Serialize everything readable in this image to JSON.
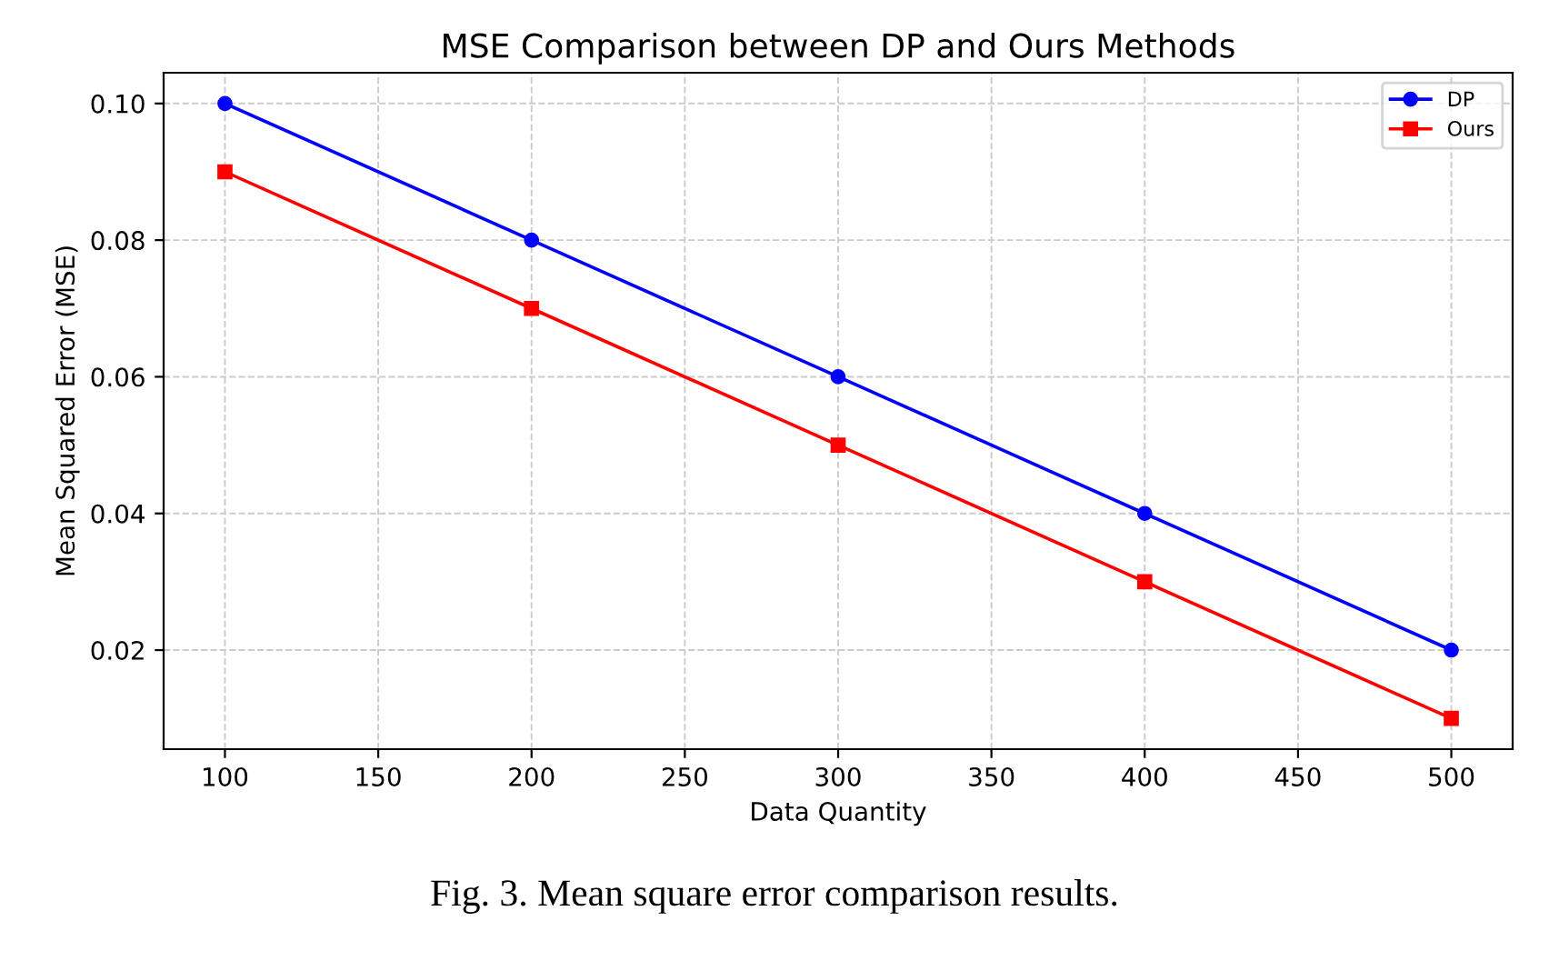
{
  "chart_data": {
    "type": "line",
    "title": "MSE Comparison between DP and Ours Methods",
    "xlabel": "Data Quantity",
    "ylabel": "Mean Squared Error (MSE)",
    "x": [
      100,
      200,
      300,
      400,
      500
    ],
    "series": [
      {
        "name": "DP",
        "color": "#0000ff",
        "values": [
          0.1,
          0.08,
          0.06,
          0.04,
          0.02
        ],
        "marker": "circle"
      },
      {
        "name": "Ours",
        "color": "#ff0000",
        "values": [
          0.09,
          0.07,
          0.05,
          0.03,
          0.01
        ],
        "marker": "square"
      }
    ],
    "xlim": [
      80,
      520
    ],
    "xticks": [
      100,
      150,
      200,
      250,
      300,
      350,
      400,
      450,
      500
    ],
    "ylim": [
      0.0055,
      0.1045
    ],
    "yticks": [
      {
        "value": 0.02,
        "label": "0.02"
      },
      {
        "value": 0.04,
        "label": "0.04"
      },
      {
        "value": 0.06,
        "label": "0.06"
      },
      {
        "value": 0.08,
        "label": "0.08"
      },
      {
        "value": 0.1,
        "label": "0.10"
      }
    ],
    "grid": true,
    "legend": "top right",
    "line_style": "solid",
    "annotations": [
      "Fig. 3. Mean square error comparison results."
    ]
  }
}
